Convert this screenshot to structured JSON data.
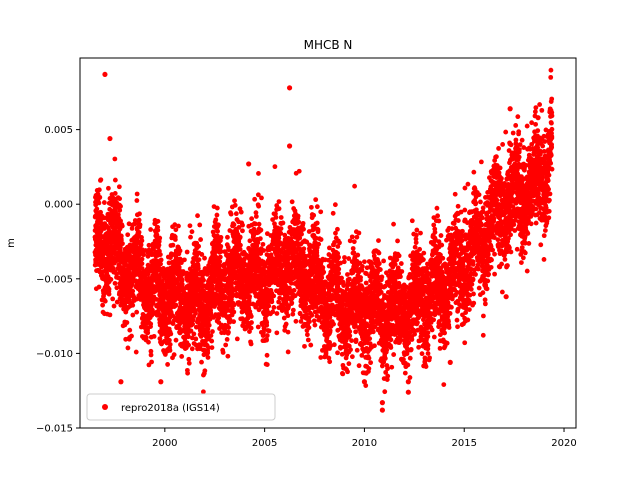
{
  "chart_data": {
    "type": "scatter",
    "title": "MHCB N",
    "xlabel": "",
    "ylabel": "m",
    "xlim": [
      1995.75,
      2020.6
    ],
    "ylim": [
      -0.015,
      0.0098
    ],
    "x_ticks": [
      2000,
      2005,
      2010,
      2015,
      2020
    ],
    "x_tick_labels": [
      "2000",
      "2005",
      "2010",
      "2015",
      "2020"
    ],
    "y_ticks": [
      -0.015,
      -0.01,
      -0.005,
      0.0,
      0.005
    ],
    "y_tick_labels": [
      "−0.015",
      "−0.010",
      "−0.005",
      "0.000",
      "0.005"
    ],
    "legend": {
      "position": "lower-left",
      "entries": [
        "repro2018a (IGS14)"
      ]
    },
    "grid": false,
    "series": [
      {
        "name": "repro2018a (IGS14)",
        "color": "#ff0000",
        "marker": "circle",
        "trend": [
          [
            1996.5,
            -0.0028
          ],
          [
            1997.0,
            -0.0025
          ],
          [
            1998.0,
            -0.0042
          ],
          [
            1999.0,
            -0.0052
          ],
          [
            2000.0,
            -0.006
          ],
          [
            2001.0,
            -0.0064
          ],
          [
            2002.0,
            -0.0066
          ],
          [
            2003.0,
            -0.005
          ],
          [
            2004.0,
            -0.0046
          ],
          [
            2005.0,
            -0.005
          ],
          [
            2006.0,
            -0.004
          ],
          [
            2007.0,
            -0.0045
          ],
          [
            2008.0,
            -0.006
          ],
          [
            2009.0,
            -0.0068
          ],
          [
            2010.0,
            -0.007
          ],
          [
            2011.0,
            -0.0072
          ],
          [
            2012.0,
            -0.007
          ],
          [
            2013.0,
            -0.0063
          ],
          [
            2014.0,
            -0.0055
          ],
          [
            2015.0,
            -0.0038
          ],
          [
            2016.0,
            -0.0022
          ],
          [
            2017.0,
            0.0
          ],
          [
            2018.0,
            0.0008
          ],
          [
            2019.0,
            0.002
          ],
          [
            2019.4,
            0.0045
          ]
        ],
        "outliers": [
          [
            1997.0,
            0.0087
          ],
          [
            1997.25,
            0.0044
          ],
          [
            2006.25,
            0.0078
          ],
          [
            2006.25,
            0.0039
          ],
          [
            1997.8,
            -0.0119
          ],
          [
            1999.8,
            -0.0119
          ],
          [
            2010.0,
            -0.0119
          ],
          [
            2010.9,
            -0.0133
          ],
          [
            2010.9,
            -0.0138
          ],
          [
            2012.2,
            -0.0119
          ],
          [
            2012.2,
            -0.0126
          ],
          [
            2004.2,
            0.0027
          ],
          [
            2017.3,
            0.0064
          ],
          [
            2018.7,
            0.0058
          ],
          [
            2017.1,
            -0.0062
          ],
          [
            2014.3,
            -0.0106
          ]
        ]
      }
    ]
  }
}
